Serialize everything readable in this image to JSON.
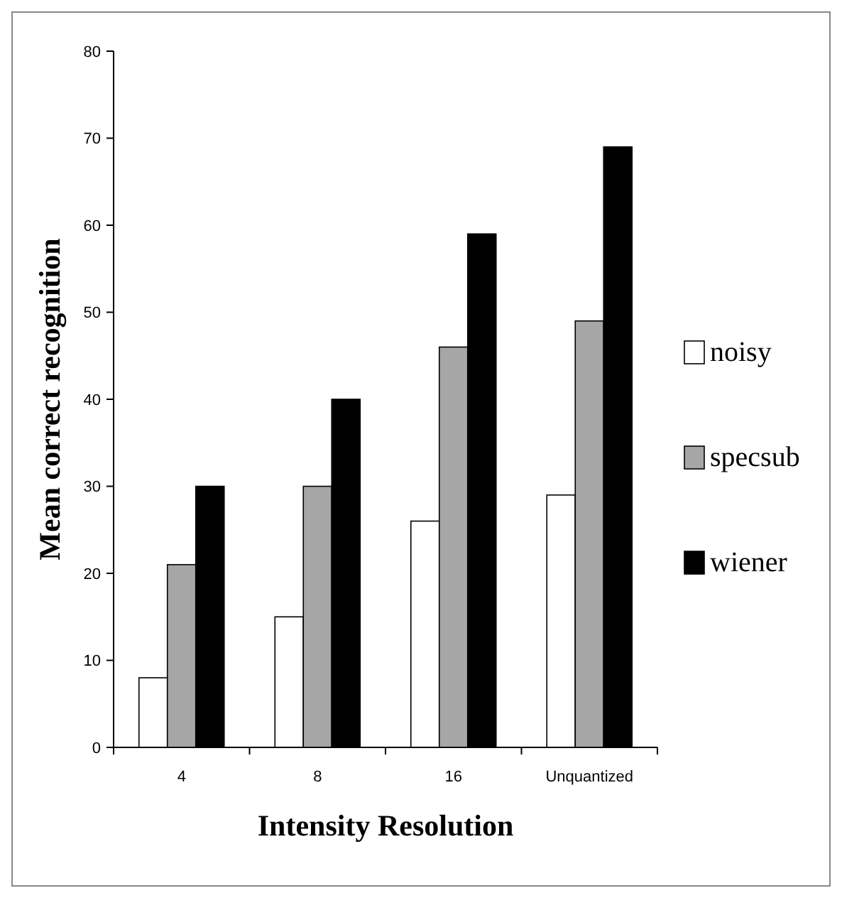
{
  "chart_data": {
    "type": "bar",
    "xlabel": "Intensity Resolution",
    "ylabel": "Mean correct recognition",
    "categories": [
      "4",
      "8",
      "16",
      "Unquantized"
    ],
    "series": [
      {
        "name": "noisy",
        "color": "#ffffff",
        "values": [
          8,
          15,
          26,
          29
        ]
      },
      {
        "name": "specsub",
        "color": "#a6a6a6",
        "values": [
          21,
          30,
          46,
          49
        ]
      },
      {
        "name": "wiener",
        "color": "#000000",
        "values": [
          30,
          40,
          59,
          69
        ]
      }
    ],
    "ylim": [
      0,
      80
    ],
    "yticks": [
      0,
      10,
      20,
      30,
      40,
      50,
      60,
      70,
      80
    ],
    "grid": false,
    "legend": "right"
  }
}
